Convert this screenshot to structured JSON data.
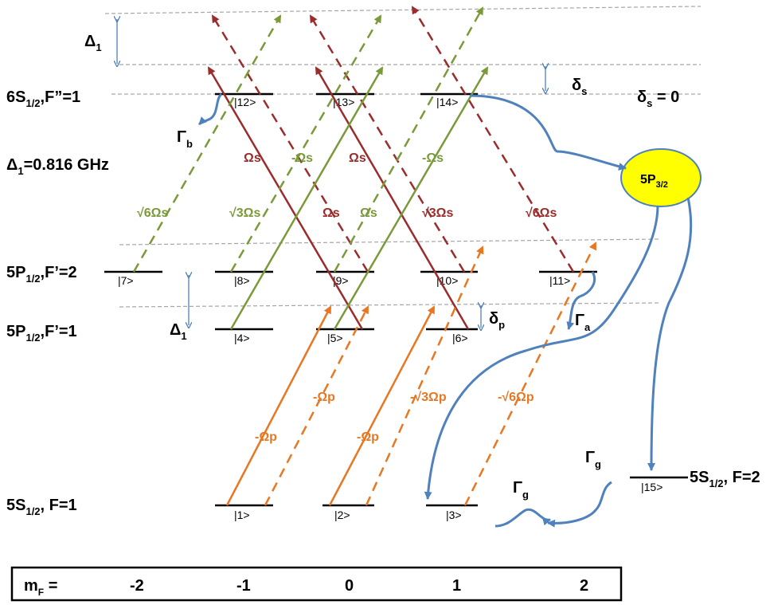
{
  "rows": {
    "s6": {
      "main": "6S",
      "sub": "1/2",
      "tail": ",F”=1"
    },
    "p2": {
      "main": "5P",
      "sub": "1/2",
      "tail": ",F’=2"
    },
    "p1": {
      "main": "5P",
      "sub": "1/2",
      "tail": ",F’=1"
    },
    "g1": {
      "main": "5S",
      "sub": "1/2",
      "tail": ", F=1"
    },
    "g2": {
      "main": "5S",
      "sub": "1/2",
      "tail": ", F=2"
    }
  },
  "states": [
    "|1>",
    "|2>",
    "|3>",
    "|4>",
    "|5>",
    "|6>",
    "|7>",
    "|8>",
    "|9>",
    "|10>",
    "|11>",
    "|12>",
    "|13>",
    "|14>",
    "|15>"
  ],
  "detunings": {
    "delta1_top": {
      "main": "Δ",
      "sub": "1"
    },
    "delta1_mid": {
      "main": "Δ",
      "sub": "1"
    },
    "delta1_value": {
      "main": "Δ",
      "sub": "1",
      "tail": "=0.816 GHz"
    },
    "delta_s": {
      "main": "δ",
      "sub": "s"
    },
    "delta_s_zero": {
      "main": "δ",
      "sub": "s",
      "tail": " = 0"
    },
    "delta_p": {
      "main": "δ",
      "sub": "p"
    }
  },
  "decays": {
    "gamma_b": {
      "main": "Γ",
      "sub": "b"
    },
    "gamma_a": {
      "main": "Γ",
      "sub": "a"
    },
    "gamma_g1": {
      "main": "Γ",
      "sub": "g"
    },
    "gamma_g2": {
      "main": "Γ",
      "sub": "g"
    }
  },
  "intermediate": {
    "main": "5P",
    "sub": "3/2"
  },
  "couplings": {
    "red": [
      "Ωs",
      "Ωs",
      "Ωs",
      "√3Ωs",
      "√6Ωs"
    ],
    "green": [
      "√6Ωs",
      "√3Ωs",
      "-Ωs",
      "Ωs",
      "-Ωs"
    ],
    "orange": [
      "-Ωp",
      "-Ωp",
      "-Ωp",
      "-√3Ωp",
      "-√6Ωp"
    ]
  },
  "mf": {
    "label_main": "m",
    "label_sub": "F",
    "label_tail": " =",
    "values": [
      "-2",
      "-1",
      "0",
      "1",
      "2"
    ]
  },
  "colors": {
    "red": "#9b2c2c",
    "green": "#7a9a3a",
    "orange": "#e87722",
    "blue": "#4f81bd",
    "yellow": "#ffff00",
    "grey": "#a6a6a6"
  }
}
